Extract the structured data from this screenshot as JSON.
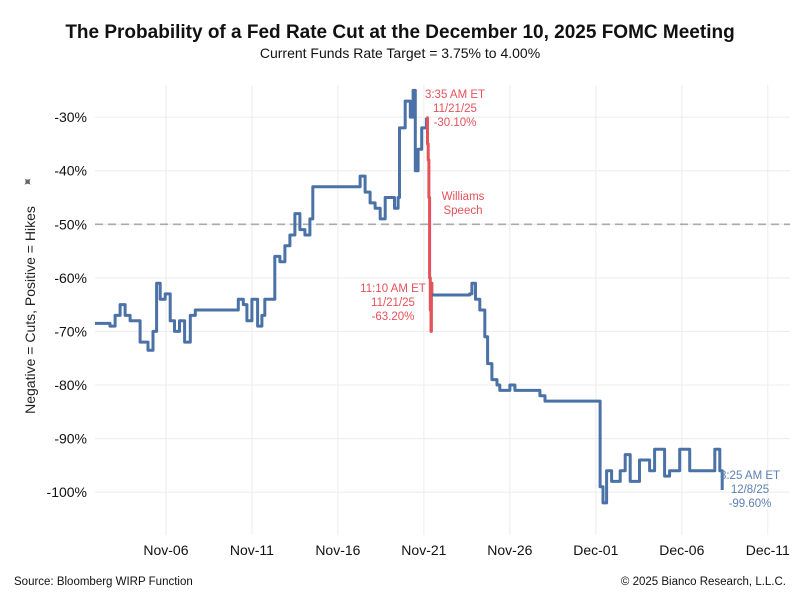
{
  "chart_data": {
    "type": "line",
    "title": "The Probability of a Fed Rate Cut at the December 10, 2025 FOMC Meeting",
    "subtitle": "Current Funds Rate Target = 3.75% to 4.00%",
    "ylabel": "Negative = Cuts, Positive = Hikes",
    "xlabel": "",
    "ylim": [
      -108,
      -24
    ],
    "xlim": [
      "2025-11-01T21:00",
      "2025-12-12T07:00"
    ],
    "y_ticks": [
      -30,
      -40,
      -50,
      -60,
      -70,
      -80,
      -90,
      -100
    ],
    "y_tick_labels": [
      "-30%",
      "-40%",
      "-50%",
      "-60%",
      "-70%",
      "-80%",
      "-90%",
      "-100%"
    ],
    "x_ticks": [
      "2025-11-06",
      "2025-11-11",
      "2025-11-16",
      "2025-11-21",
      "2025-11-26",
      "2025-12-01",
      "2025-12-06",
      "2025-12-11"
    ],
    "x_tick_labels": [
      "Nov-06",
      "Nov-11",
      "Nov-16",
      "Nov-21",
      "Nov-26",
      "Dec-01",
      "Dec-06",
      "Dec-11"
    ],
    "grid": true,
    "reference_line": {
      "y": -50,
      "style": "dashed",
      "color": "#aaaaaa"
    },
    "colors": {
      "main": "#4a72a6",
      "highlight": "#e4525a",
      "end_label": "#5b80b4"
    },
    "series": [
      {
        "color": "#4a72a6",
        "points": [
          [
            "2025-11-01T21:00",
            -68.5
          ],
          [
            "2025-11-02T11:00",
            -68.5
          ],
          [
            "2025-11-02T18:00",
            -69
          ],
          [
            "2025-11-03T01:00",
            -67
          ],
          [
            "2025-11-03T08:00",
            -65
          ],
          [
            "2025-11-03T15:00",
            -67
          ],
          [
            "2025-11-03T22:00",
            -68
          ],
          [
            "2025-11-04T12:00",
            -72
          ],
          [
            "2025-11-04T23:00",
            -73.5
          ],
          [
            "2025-11-05T06:00",
            -70
          ],
          [
            "2025-11-05T11:00",
            -61
          ],
          [
            "2025-11-05T16:00",
            -64
          ],
          [
            "2025-11-05T23:00",
            -63
          ],
          [
            "2025-11-06T06:00",
            -68
          ],
          [
            "2025-11-06T12:00",
            -70
          ],
          [
            "2025-11-06T19:00",
            -68
          ],
          [
            "2025-11-07T02:00",
            -72
          ],
          [
            "2025-11-07T10:00",
            -67
          ],
          [
            "2025-11-07T17:00",
            -66
          ],
          [
            "2025-11-10T00:00",
            -66
          ],
          [
            "2025-11-10T05:00",
            -64
          ],
          [
            "2025-11-10T12:00",
            -65
          ],
          [
            "2025-11-10T17:00",
            -68
          ],
          [
            "2025-11-11T00:00",
            -64
          ],
          [
            "2025-11-11T08:00",
            -69
          ],
          [
            "2025-11-11T14:00",
            -67
          ],
          [
            "2025-11-11T18:00",
            -64
          ],
          [
            "2025-11-12T01:00",
            -64
          ],
          [
            "2025-11-12T08:00",
            -56
          ],
          [
            "2025-11-12T15:00",
            -57
          ],
          [
            "2025-11-12T22:00",
            -54
          ],
          [
            "2025-11-13T05:00",
            -52
          ],
          [
            "2025-11-13T12:00",
            -48
          ],
          [
            "2025-11-13T19:00",
            -51
          ],
          [
            "2025-11-14T02:00",
            -52
          ],
          [
            "2025-11-14T09:00",
            -49
          ],
          [
            "2025-11-14T13:00",
            -43
          ],
          [
            "2025-11-17T00:00",
            -43
          ],
          [
            "2025-11-17T07:00",
            -41
          ],
          [
            "2025-11-17T14:00",
            -44
          ],
          [
            "2025-11-17T21:00",
            -46
          ],
          [
            "2025-11-18T04:00",
            -47
          ],
          [
            "2025-11-18T11:00",
            -49
          ],
          [
            "2025-11-18T18:00",
            -45
          ],
          [
            "2025-11-19T00:00",
            -45
          ],
          [
            "2025-11-19T07:00",
            -47
          ],
          [
            "2025-11-19T12:00",
            -45
          ],
          [
            "2025-11-19T14:00",
            -32
          ],
          [
            "2025-11-19T22:00",
            -27
          ],
          [
            "2025-11-20T05:00",
            -30
          ],
          [
            "2025-11-20T09:00",
            -25
          ],
          [
            "2025-11-20T12:00",
            -40
          ],
          [
            "2025-11-20T16:00",
            -36
          ],
          [
            "2025-11-20T21:00",
            -32
          ],
          [
            "2025-11-21T03:35",
            -30.1
          ]
        ]
      },
      {
        "color": "#e4525a",
        "points": [
          [
            "2025-11-21T03:35",
            -30.1
          ],
          [
            "2025-11-21T05:00",
            -35
          ],
          [
            "2025-11-21T06:00",
            -38
          ],
          [
            "2025-11-21T07:00",
            -45
          ],
          [
            "2025-11-21T08:00",
            -60
          ],
          [
            "2025-11-21T09:00",
            -66
          ],
          [
            "2025-11-21T10:00",
            -70
          ],
          [
            "2025-11-21T10:30",
            -61
          ],
          [
            "2025-11-21T11:10",
            -63.2
          ]
        ]
      },
      {
        "color": "#4a72a6",
        "points": [
          [
            "2025-11-21T11:10",
            -63.2
          ],
          [
            "2025-11-23T16:00",
            -63
          ],
          [
            "2025-11-23T19:00",
            -61
          ],
          [
            "2025-11-24T00:00",
            -64
          ],
          [
            "2025-11-24T06:00",
            -66
          ],
          [
            "2025-11-24T13:00",
            -71
          ],
          [
            "2025-11-24T17:00",
            -76
          ],
          [
            "2025-11-24T23:00",
            -79
          ],
          [
            "2025-11-25T06:00",
            -80
          ],
          [
            "2025-11-25T10:00",
            -81
          ],
          [
            "2025-11-26T00:00",
            -80
          ],
          [
            "2025-11-26T07:00",
            -81
          ],
          [
            "2025-11-27T04:00",
            -81
          ],
          [
            "2025-11-27T18:00",
            -82
          ],
          [
            "2025-11-28T01:00",
            -83
          ],
          [
            "2025-12-01T00:00",
            -83
          ],
          [
            "2025-12-01T06:00",
            -99
          ],
          [
            "2025-12-01T10:00",
            -102
          ],
          [
            "2025-12-01T15:00",
            -96
          ],
          [
            "2025-12-01T22:00",
            -98
          ],
          [
            "2025-12-02T10:00",
            -96
          ],
          [
            "2025-12-02T17:00",
            -93
          ],
          [
            "2025-12-03T00:00",
            -98
          ],
          [
            "2025-12-03T13:00",
            -94
          ],
          [
            "2025-12-04T03:00",
            -96
          ],
          [
            "2025-12-04T10:00",
            -92
          ],
          [
            "2025-12-05T00:00",
            -97
          ],
          [
            "2025-12-05T07:00",
            -96
          ],
          [
            "2025-12-05T21:00",
            -92
          ],
          [
            "2025-12-06T11:00",
            -96
          ],
          [
            "2025-12-07T15:00",
            -96
          ],
          [
            "2025-12-07T22:00",
            -92
          ],
          [
            "2025-12-08T05:00",
            -96
          ],
          [
            "2025-12-08T08:25",
            -99.6
          ]
        ]
      }
    ],
    "annotations": [
      {
        "lines": [
          "3:35 AM ET",
          "11/21/25",
          "-30.10%"
        ],
        "color": "#e4525a"
      },
      {
        "lines": [
          "Williams",
          "Speech"
        ],
        "color": "#e4525a"
      },
      {
        "lines": [
          "11:10 AM ET",
          "11/21/25",
          "-63.20%"
        ],
        "color": "#e4525a"
      },
      {
        "lines": [
          "8:25 AM ET",
          "12/8/25",
          "-99.60%"
        ],
        "color": "#5b80b4"
      }
    ]
  },
  "footer": {
    "source": "Source: Bloomberg WIRP Function",
    "copyright": "© 2025 Bianco Research, L.L.C."
  }
}
